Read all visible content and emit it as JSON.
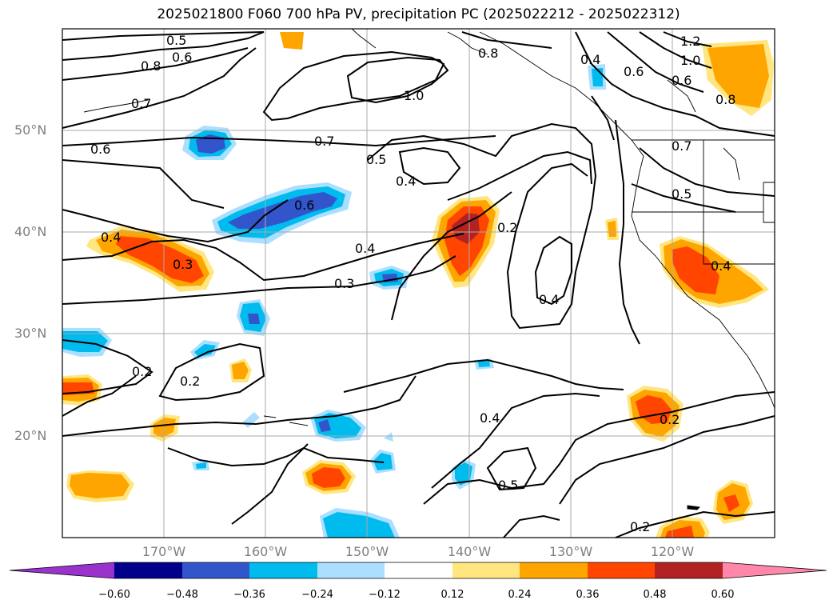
{
  "title": "2025021800 F060 700 hPa PV, precipitation PC (2025022212 - 2025022312)",
  "lat_labels": [
    "50°N",
    "40°N",
    "30°N",
    "20°N"
  ],
  "lon_labels": [
    "170°W",
    "160°W",
    "150°W",
    "140°W",
    "130°W",
    "120°W"
  ],
  "contour_labels": [
    "0.5",
    "0.6",
    "0.8",
    "0.7",
    "0.6",
    "1.0",
    "0.8",
    "0.4",
    "1.2",
    "1.0",
    "0.6",
    "0.8",
    "0.7",
    "0.6",
    "0.5",
    "0.4",
    "0.7",
    "0.6",
    "0.5",
    "0.4",
    "0.3",
    "0.4",
    "0.2",
    "0.3",
    "0.4",
    "0.4",
    "0.2",
    "0.2",
    "0.4",
    "0.5",
    "0.2",
    "0.2"
  ],
  "colorbar": {
    "ticks": [
      "−0.60",
      "−0.48",
      "−0.36",
      "−0.24",
      "−0.12",
      "0.12",
      "0.24",
      "0.36",
      "0.48",
      "0.60"
    ],
    "colors": [
      "#9933cc",
      "#00008b",
      "#3355cc",
      "#00bbee",
      "#aadfff",
      "#ffffff",
      "#ffe680",
      "#ffa500",
      "#ff4500",
      "#b22222",
      "#ff88aa"
    ]
  },
  "colors": {
    "blue_light": "#aadfff",
    "blue": "#00bbee",
    "blue_dark": "#3355cc",
    "yellow": "#ffe680",
    "orange": "#ffa500",
    "red": "#ff4500",
    "darkred": "#b22222"
  }
}
